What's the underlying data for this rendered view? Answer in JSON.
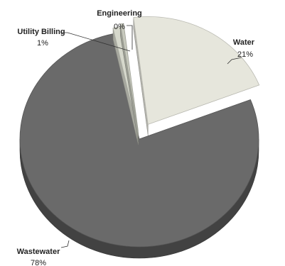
{
  "chart_data": {
    "type": "pie",
    "style": "3d-exploded",
    "categories": [
      "Water",
      "Wastewater",
      "Utility Billing",
      "Engineering"
    ],
    "values": [
      21,
      78,
      1,
      0
    ],
    "value_labels": [
      "21%",
      "78%",
      "1%",
      "0%"
    ],
    "colors": {
      "Water": "#e6e6dc",
      "Wastewater": "#6a6a6a",
      "Utility Billing": "#d6d8cc",
      "Engineering": "#c7c9bd"
    },
    "legend": "none"
  }
}
